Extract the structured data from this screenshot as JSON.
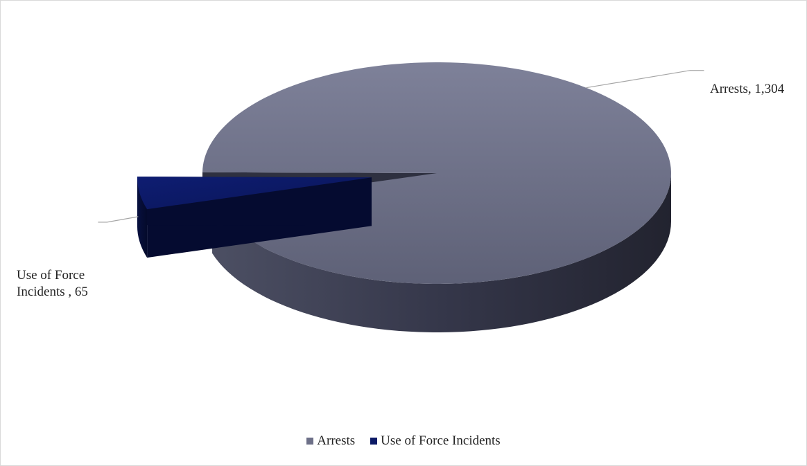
{
  "chart_data": {
    "type": "pie",
    "title": "",
    "style": "3d-exploded",
    "legend_position": "bottom",
    "slices": [
      {
        "name": "Arrests",
        "value": 1304,
        "label": "Arrests, 1,304",
        "color": "#6d7088"
      },
      {
        "name": "Use of Force Incidents",
        "value": 65,
        "label_lines": [
          "Use of Force",
          "Incidents , 65"
        ],
        "color": "#0c1a66"
      }
    ]
  },
  "legend": {
    "items": [
      {
        "label": "Arrests",
        "color": "#6d7088"
      },
      {
        "label": "Use of Force Incidents",
        "color": "#0c1a66"
      }
    ]
  }
}
